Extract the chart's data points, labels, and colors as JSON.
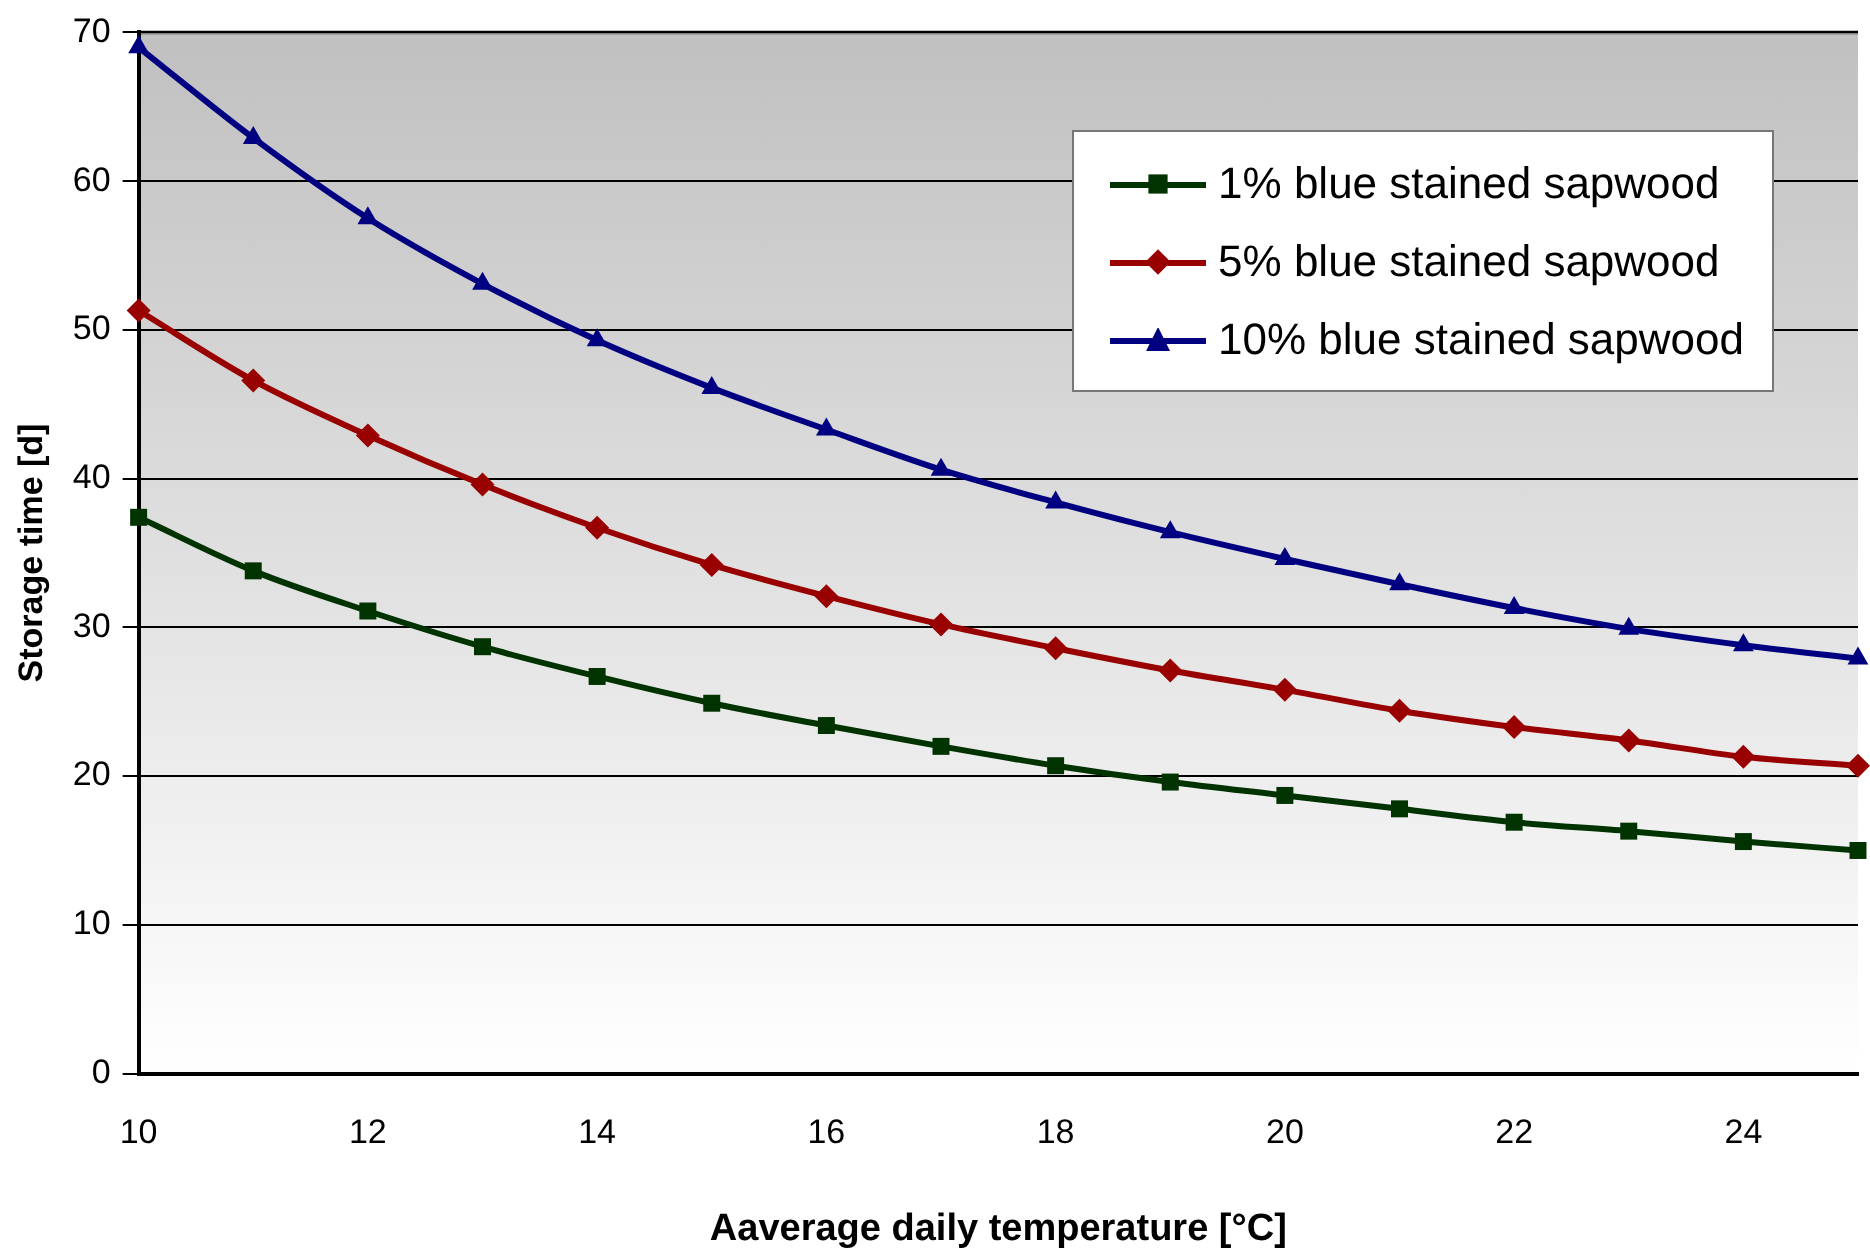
{
  "chart_data": {
    "type": "line",
    "xlabel": "Aaverage daily temperature [°C]",
    "ylabel": "Storage time [d]",
    "x": [
      10,
      11,
      12,
      13,
      14,
      15,
      16,
      17,
      18,
      19,
      20,
      21,
      22,
      23,
      24,
      25
    ],
    "series": [
      {
        "name": "1% blue stained sapwood",
        "color": "#003300",
        "marker": "square",
        "values": [
          37.4,
          33.8,
          31.1,
          28.7,
          26.7,
          24.9,
          23.4,
          22.0,
          20.7,
          19.6,
          18.7,
          17.8,
          16.9,
          16.3,
          15.6,
          15.0
        ]
      },
      {
        "name": "5% blue stained sapwood",
        "color": "#990000",
        "marker": "diamond",
        "values": [
          51.3,
          46.6,
          42.9,
          39.6,
          36.7,
          34.2,
          32.1,
          30.2,
          28.6,
          27.1,
          25.8,
          24.4,
          23.3,
          22.4,
          21.3,
          20.7
        ]
      },
      {
        "name": "10% blue stained sapwood",
        "color": "#000080",
        "marker": "triangle",
        "values": [
          69.0,
          62.9,
          57.5,
          53.1,
          49.3,
          46.1,
          43.3,
          40.6,
          38.4,
          36.4,
          34.6,
          32.9,
          31.3,
          29.9,
          28.8,
          27.9
        ]
      }
    ],
    "xlim": [
      10,
      25
    ],
    "xticks": [
      10,
      12,
      14,
      16,
      18,
      20,
      22,
      24
    ],
    "ylim": [
      0,
      70
    ],
    "yticks": [
      0,
      10,
      20,
      30,
      40,
      50,
      60,
      70
    ],
    "grid": "y",
    "legend": "top right",
    "line_style": "solid"
  }
}
